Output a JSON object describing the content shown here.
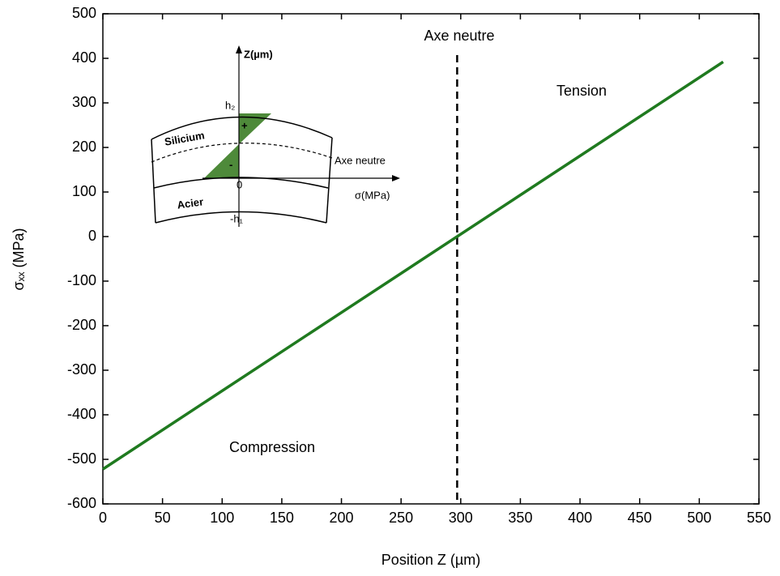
{
  "chart_data": {
    "type": "line",
    "x_label": "Position Z (µm)",
    "y_label": "σₓₓ (MPa)",
    "x": [
      0,
      520
    ],
    "series": [
      {
        "color": "#1f7a1f",
        "values": [
          -522,
          392
        ]
      }
    ],
    "neutral_axis_x": 297,
    "annotations": {
      "neutral": "Axe neutre",
      "tension": "Tension",
      "compression": "Compression"
    },
    "xlim": [
      0,
      550
    ],
    "xticks": [
      0,
      50,
      100,
      150,
      200,
      250,
      300,
      350,
      400,
      450,
      500,
      550
    ],
    "ylim": [
      -600,
      500
    ],
    "yticks": [
      -600,
      -500,
      -400,
      -300,
      -200,
      -100,
      0,
      100,
      200,
      300,
      400,
      500
    ],
    "grid": false,
    "inset": {
      "z_axis": "Z(µm)",
      "h2": "h₂",
      "silicon": "Silicium",
      "neutral": "Axe neutre",
      "plus": "+",
      "minus": "-",
      "zero": "0",
      "sigma_axis": "σ(MPa)",
      "steel": "Acier",
      "h1": "-h₁"
    }
  }
}
